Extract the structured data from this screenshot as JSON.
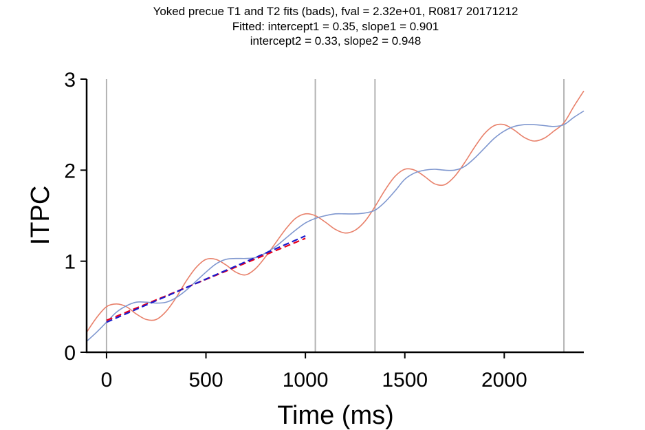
{
  "chart_data": {
    "type": "line",
    "title_lines": [
      "Yoked precue T1 and T2 fits (bads), fval = 2.32e+01, R0817 20171212",
      "Fitted: intercept1 = 0.35, slope1 = 0.901",
      "intercept2 = 0.33, slope2 = 0.948"
    ],
    "xlabel": "Time (ms)",
    "ylabel": "ITPC",
    "xlim": [
      -100,
      2400
    ],
    "ylim": [
      0,
      3
    ],
    "xticks": [
      0,
      500,
      1000,
      1500,
      2000
    ],
    "yticks": [
      0,
      1,
      2,
      3
    ],
    "grid": false,
    "event_lines_x": [
      0,
      1050,
      1350,
      2300
    ],
    "event_line_color": "#b3b3b3",
    "series": [
      {
        "color": "#e8806a",
        "style": "solid",
        "x": [
          -100,
          -50,
          0,
          50,
          100,
          150,
          200,
          250,
          300,
          350,
          400,
          450,
          500,
          550,
          600,
          650,
          700,
          750,
          800,
          850,
          900,
          950,
          1000,
          1050,
          1100,
          1150,
          1200,
          1250,
          1300,
          1350,
          1400,
          1450,
          1500,
          1550,
          1600,
          1650,
          1700,
          1750,
          1800,
          1850,
          1900,
          1950,
          2000,
          2050,
          2100,
          2150,
          2200,
          2250,
          2300,
          2350,
          2400
        ],
        "y": [
          0.22,
          0.38,
          0.5,
          0.53,
          0.5,
          0.42,
          0.36,
          0.36,
          0.45,
          0.6,
          0.78,
          0.93,
          1.02,
          1.02,
          0.96,
          0.88,
          0.85,
          0.92,
          1.05,
          1.2,
          1.35,
          1.47,
          1.52,
          1.5,
          1.43,
          1.35,
          1.31,
          1.34,
          1.44,
          1.6,
          1.78,
          1.93,
          2.01,
          2.0,
          1.93,
          1.85,
          1.84,
          1.93,
          2.08,
          2.25,
          2.4,
          2.49,
          2.5,
          2.44,
          2.36,
          2.32,
          2.35,
          2.43,
          2.52,
          2.7,
          2.87
        ]
      },
      {
        "color": "#7f97cf",
        "style": "solid",
        "x": [
          -100,
          -50,
          0,
          50,
          100,
          150,
          200,
          250,
          300,
          350,
          400,
          450,
          500,
          550,
          600,
          650,
          700,
          750,
          800,
          850,
          900,
          950,
          1000,
          1050,
          1100,
          1150,
          1200,
          1250,
          1300,
          1350,
          1400,
          1450,
          1500,
          1550,
          1600,
          1650,
          1700,
          1750,
          1800,
          1850,
          1900,
          1950,
          2000,
          2050,
          2100,
          2150,
          2200,
          2250,
          2300,
          2350,
          2400
        ],
        "y": [
          0.12,
          0.22,
          0.33,
          0.44,
          0.51,
          0.55,
          0.55,
          0.54,
          0.55,
          0.6,
          0.68,
          0.78,
          0.88,
          0.97,
          1.02,
          1.03,
          1.03,
          1.04,
          1.09,
          1.16,
          1.25,
          1.34,
          1.42,
          1.47,
          1.5,
          1.52,
          1.52,
          1.52,
          1.53,
          1.56,
          1.65,
          1.77,
          1.9,
          1.97,
          2.0,
          2.01,
          2.0,
          2.0,
          2.04,
          2.13,
          2.24,
          2.35,
          2.43,
          2.48,
          2.5,
          2.5,
          2.49,
          2.48,
          2.5,
          2.58,
          2.65
        ]
      },
      {
        "color": "#e8001c",
        "style": "dashed",
        "x": [
          0,
          1000
        ],
        "y": [
          0.35,
          1.251
        ]
      },
      {
        "color": "#1a1acc",
        "style": "dashed",
        "x": [
          0,
          1000
        ],
        "y": [
          0.33,
          1.278
        ]
      }
    ]
  }
}
